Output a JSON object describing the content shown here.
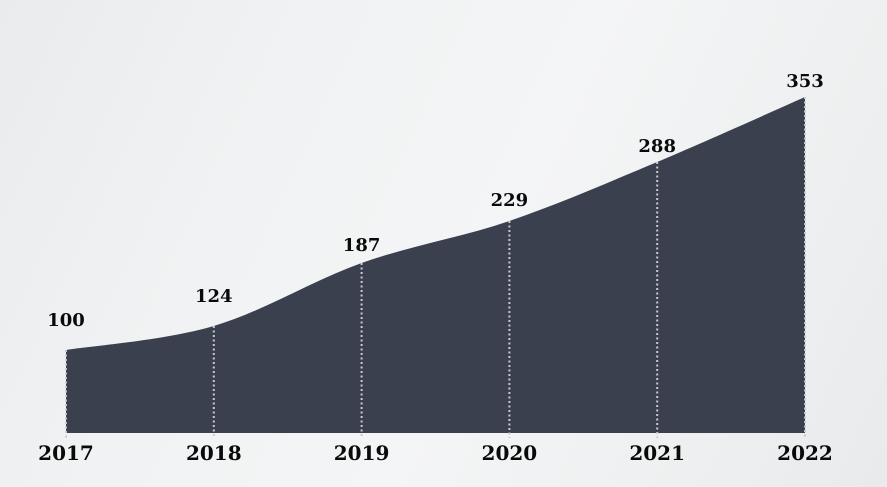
{
  "chart_data": {
    "type": "area",
    "title": "",
    "xlabel": "",
    "ylabel": "",
    "categories": [
      "2017",
      "2018",
      "2019",
      "2020",
      "2021",
      "2022"
    ],
    "values": [
      100,
      124,
      187,
      229,
      288,
      353
    ],
    "data_labels": [
      "100",
      "124",
      "187",
      "229",
      "288",
      "353"
    ],
    "series": [
      {
        "name": "value-index",
        "values": [
          100,
          124,
          187,
          229,
          288,
          353
        ]
      }
    ],
    "legend": "none",
    "grid": "none",
    "droplines": "dotted vertical line from each data point to baseline",
    "axis": {
      "x_ticks": [
        "2017",
        "2018",
        "2019",
        "2020",
        "2021",
        "2022"
      ],
      "y_axis_visible": false
    },
    "colors": {
      "area_fill": "#3b404e",
      "dropline": "#c8cacd",
      "label_text": "#0a0a0a",
      "background_light": "#f4f5f6",
      "background_dark": "#e8eaec"
    }
  }
}
